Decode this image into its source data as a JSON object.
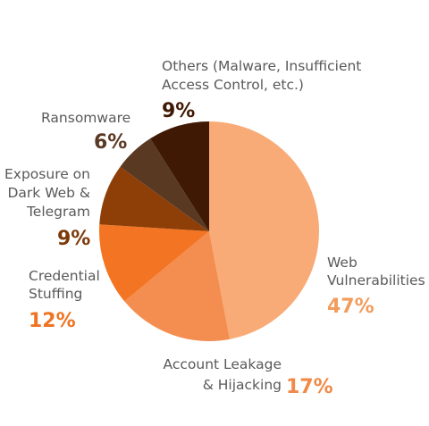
{
  "chart_data": {
    "type": "pie",
    "title": "",
    "start_angle_deg": 0,
    "direction": "clockwise",
    "slices": [
      {
        "name_lines": [
          "Web",
          "Vulnerabilities"
        ],
        "value": 47,
        "value_label": "47%",
        "color": "#F8AB77",
        "label_color": "#F29C5E"
      },
      {
        "name_lines": [
          "Account Leakage",
          "& Hijacking"
        ],
        "value": 17,
        "value_label": "17%",
        "color": "#F48D50",
        "label_color": "#F08A48"
      },
      {
        "name_lines": [
          "Credential",
          "Stuffing"
        ],
        "value": 12,
        "value_label": "12%",
        "color": "#F37524",
        "label_color": "#EE7424"
      },
      {
        "name_lines": [
          "Exposure on",
          "Dark Web &",
          "Telegram"
        ],
        "value": 9,
        "value_label": "9%",
        "color": "#8E3F08",
        "label_color": "#7C3A0A"
      },
      {
        "name_lines": [
          "Ransomware"
        ],
        "value": 6,
        "value_label": "6%",
        "color": "#5A3923",
        "label_color": "#5A3923"
      },
      {
        "name_lines": [
          "Others (Malware, Insufficient",
          "Access Control, etc.)"
        ],
        "value": 9,
        "value_label": "9%",
        "color": "#3F1904",
        "label_color": "#3F1904"
      }
    ]
  }
}
